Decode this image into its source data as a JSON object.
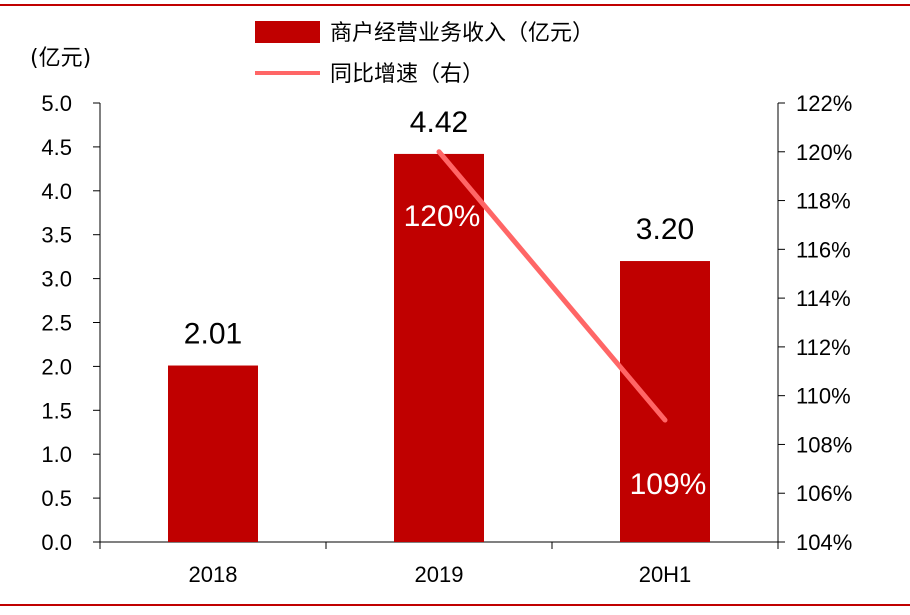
{
  "chart_data": {
    "type": "bar",
    "categories": [
      "2018",
      "2019",
      "20H1"
    ],
    "series": [
      {
        "name": "商户经营业务收入（亿元）",
        "type": "bar",
        "axis": "left",
        "color": "#C00000",
        "values": [
          2.01,
          4.42,
          3.2
        ],
        "data_labels": [
          "2.01",
          "4.42",
          "3.20"
        ]
      },
      {
        "name": "同比增速（右）",
        "type": "line",
        "axis": "right",
        "color": "#FF6666",
        "values": [
          null,
          120,
          109
        ],
        "data_labels": [
          "",
          "120%",
          "109%"
        ]
      }
    ],
    "ylabel_left": "(亿元)",
    "ylim_left": [
      0,
      5
    ],
    "yticks_left": [
      "0.0",
      "0.5",
      "1.0",
      "1.5",
      "2.0",
      "2.5",
      "3.0",
      "3.5",
      "4.0",
      "4.5",
      "5.0"
    ],
    "ylim_right": [
      104,
      122
    ],
    "yticks_right": [
      "104%",
      "106%",
      "108%",
      "110%",
      "112%",
      "114%",
      "116%",
      "118%",
      "120%",
      "122%"
    ],
    "legend_position": "top-center",
    "grid": false,
    "frame_color": "#C00000"
  }
}
